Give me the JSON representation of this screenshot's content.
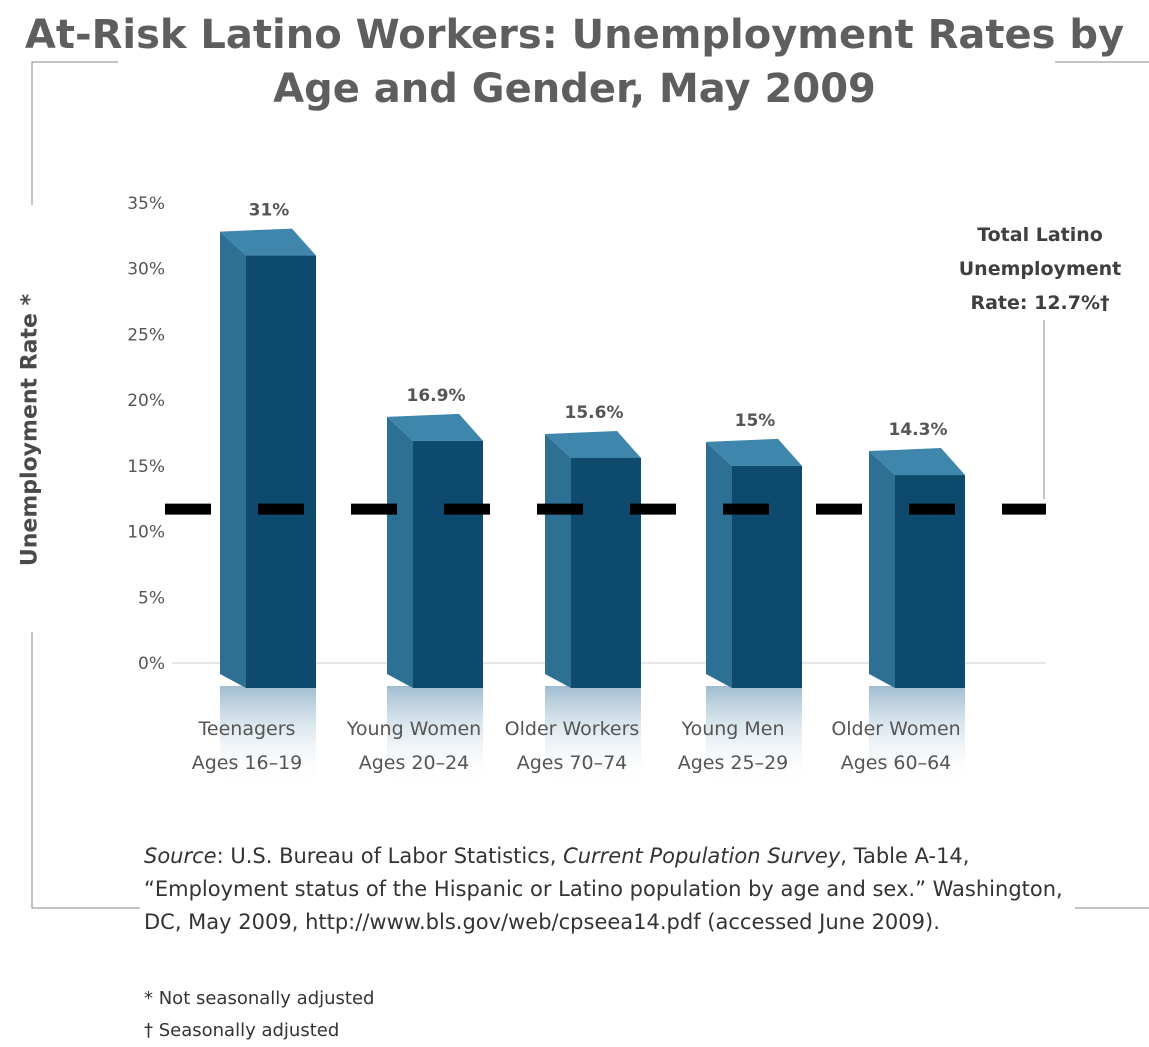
{
  "chart_data": {
    "type": "bar",
    "title": "At-Risk Latino Workers: Unemployment Rates by Age and Gender, May 2009",
    "ylabel": "Unemployment Rate *",
    "ylim": [
      0,
      35
    ],
    "yticks": [
      "35%",
      "30%",
      "25%",
      "20%",
      "15%",
      "10%",
      "5%",
      "0%"
    ],
    "categories": [
      {
        "line1": "Teenagers",
        "line2": "Ages 16–19"
      },
      {
        "line1": "Young Women",
        "line2": "Ages 20–24"
      },
      {
        "line1": "Older Workers",
        "line2": "Ages 70–74"
      },
      {
        "line1": "Young Men",
        "line2": "Ages 25–29"
      },
      {
        "line1": "Older Women",
        "line2": "Ages 60–64"
      }
    ],
    "values": [
      31,
      16.9,
      15.6,
      15,
      14.3
    ],
    "value_labels": [
      "31%",
      "16.9%",
      "15.6%",
      "15%",
      "14.3%"
    ],
    "reference_line": {
      "value": 12.7,
      "label_lines": [
        "Total Latino",
        "Unemployment",
        "Rate:  12.7%†"
      ]
    },
    "colors": {
      "bar_front": "#0d4a6e",
      "bar_side": "#2e6f94",
      "bar_top": "#3f86ad",
      "reference": "#000000"
    }
  },
  "source": {
    "label": "Source",
    "text1": ":  U.S. Bureau of Labor Statistics, ",
    "survey": "Current Population Survey",
    "text2": ", Table A-14, “Employment status of the Hispanic or Latino population by age and sex.”  Washington, DC, May 2009, http://www.bls.gov/web/cpseea14.pdf (accessed June 2009)."
  },
  "footnotes": {
    "not_seasonal": "* Not seasonally adjusted",
    "seasonal": "† Seasonally adjusted"
  }
}
